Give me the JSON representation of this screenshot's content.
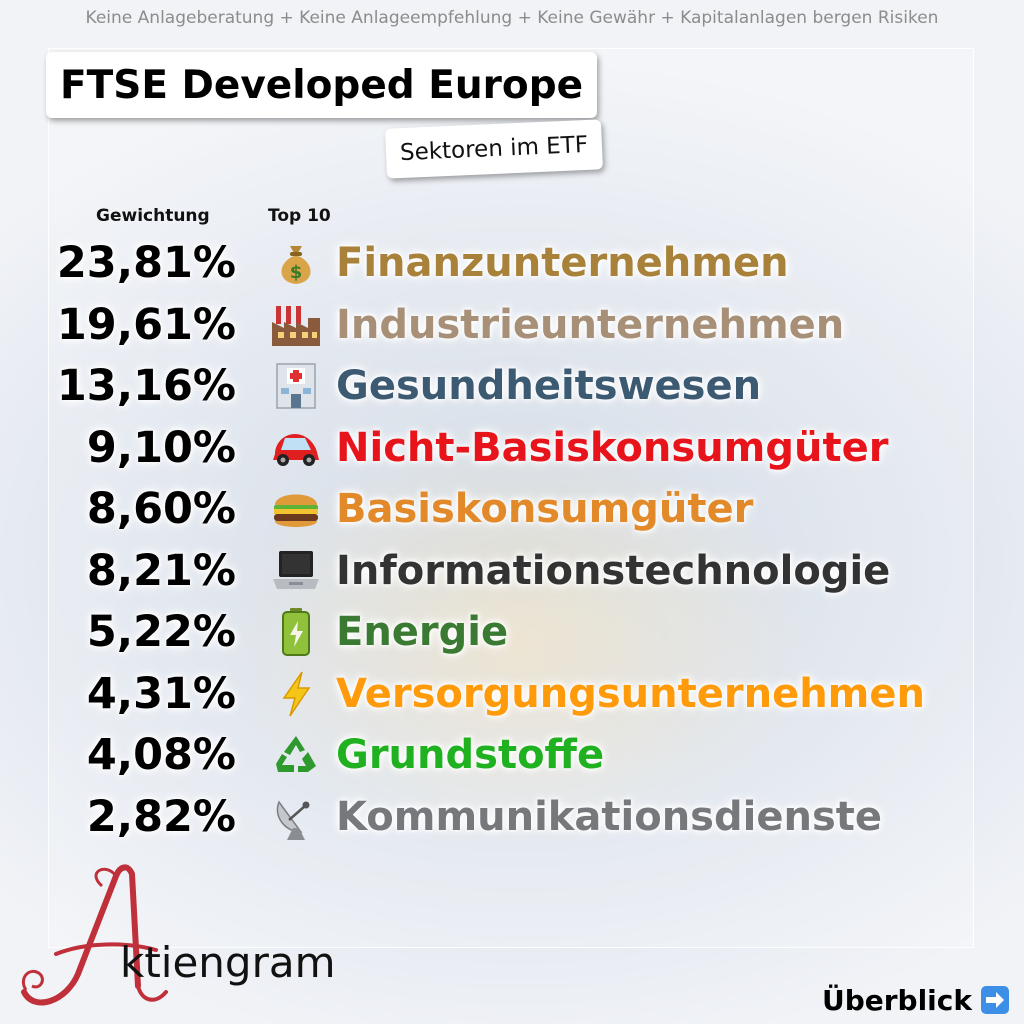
{
  "disclaimer": "Keine Anlageberatung + Keine Anlageempfehlung + Keine Gewähr + Kapitalanlagen bergen Risiken",
  "title": "FTSE Developed Europe",
  "subtitle": "Sektoren im ETF",
  "columns": {
    "weight": "Gewichtung",
    "top": "Top 10"
  },
  "sectors": [
    {
      "weight": "23,81%",
      "name": "Finanzunternehmen",
      "icon": "money-bag-icon",
      "color": "#a8823a"
    },
    {
      "weight": "19,61%",
      "name": "Industrieunternehmen",
      "icon": "factory-icon",
      "color": "#a89078"
    },
    {
      "weight": "13,16%",
      "name": "Gesundheitswesen",
      "icon": "hospital-icon",
      "color": "#3d5a73"
    },
    {
      "weight": "9,10%",
      "name": "Nicht-Basiskonsumgüter",
      "icon": "car-icon",
      "color": "#e8141c"
    },
    {
      "weight": "8,60%",
      "name": "Basiskonsumgüter",
      "icon": "burger-icon",
      "color": "#e2892a"
    },
    {
      "weight": "8,21%",
      "name": "Informationstechnologie",
      "icon": "laptop-icon",
      "color": "#333333"
    },
    {
      "weight": "5,22%",
      "name": "Energie",
      "icon": "battery-icon",
      "color": "#3b7a33"
    },
    {
      "weight": "4,31%",
      "name": "Versorgungsunternehmen",
      "icon": "lightning-icon",
      "color": "#ff9a0a"
    },
    {
      "weight": "4,08%",
      "name": "Grundstoffe",
      "icon": "recycle-icon",
      "color": "#1fb11f"
    },
    {
      "weight": "2,82%",
      "name": "Kommunikationsdienste",
      "icon": "satellite-dish-icon",
      "color": "#77787c"
    }
  ],
  "brand": {
    "name": "Aktiengram",
    "rest": "ktiengram",
    "accent": "#c0303a"
  },
  "footer": {
    "overview": "Überblick"
  }
}
